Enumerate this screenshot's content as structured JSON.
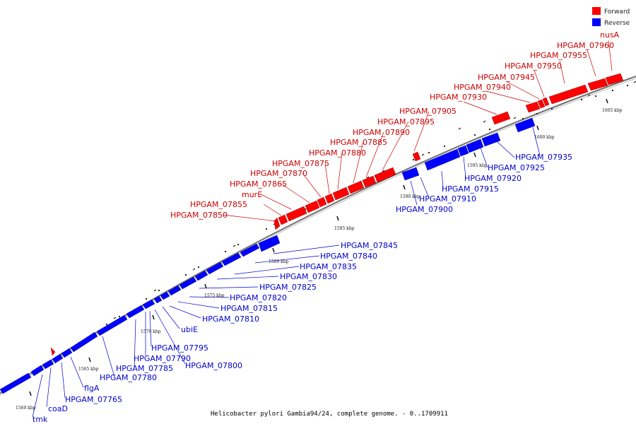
{
  "caption": "Helicobacter pylori Gambia94/24, complete genome. - 0..1709911",
  "legend": [
    {
      "label": "Forward",
      "color": "#ff0000"
    },
    {
      "label": "Reverse",
      "color": "#0000ff"
    }
  ],
  "colors": {
    "forward": "#ff0000",
    "reverse": "#0000ff",
    "backbone": "#777777"
  },
  "ticks": [
    "1560 kbp",
    "1565 kbp",
    "1570 kbp",
    "1575 kbp",
    "1580 kbp",
    "1585 kbp",
    "1590 kbp",
    "1595 kbp",
    "1600 kbp",
    "1605 kbp"
  ],
  "forward_labels": [
    "HPGAM_07850",
    "HPGAM_07855",
    "murE",
    "HPGAM_07865",
    "HPGAM_07870",
    "HPGAM_07875",
    "HPGAM_07880",
    "HPGAM_07885",
    "HPGAM_07890",
    "HPGAM_07895",
    "HPGAM_07905",
    "HPGAM_07930",
    "HPGAM_07940",
    "HPGAM_07945",
    "HPGAM_07950",
    "HPGAM_07955",
    "HPGAM_07960",
    "nusA"
  ],
  "reverse_labels": [
    "HPGAM_07845",
    "HPGAM_07840",
    "HPGAM_07835",
    "HPGAM_07830",
    "HPGAM_07825",
    "HPGAM_07820",
    "HPGAM_07815",
    "HPGAM_07810",
    "ubiE",
    "HPGAM_07795",
    "HPGAM_07790",
    "HPGAM_07800",
    "HPGAM_07785",
    "HPGAM_07780",
    "flgA",
    "HPGAM_07765",
    "coaD",
    "tmk",
    "HPGAM_07900",
    "HPGAM_07910",
    "HPGAM_07915",
    "HPGAM_07920",
    "HPGAM_07925",
    "HPGAM_07935"
  ]
}
